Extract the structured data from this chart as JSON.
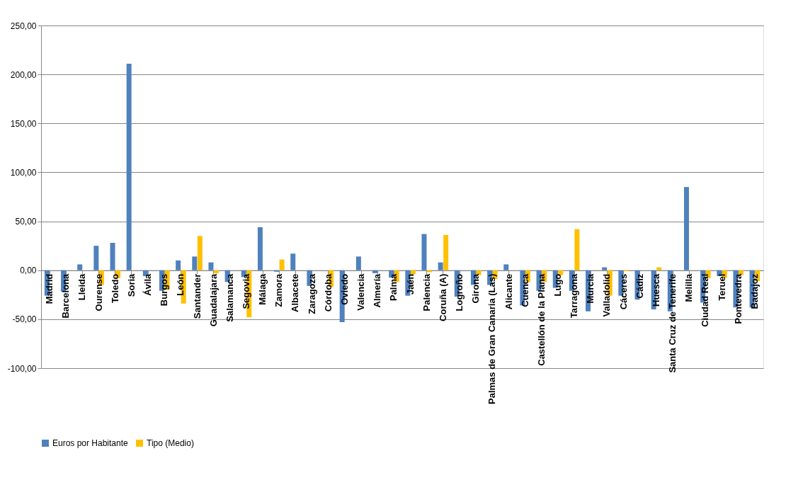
{
  "chart_data": {
    "type": "bar",
    "categories": [
      "Madrid",
      "Barcelona",
      "Lleida",
      "Ourense",
      "Toledo",
      "Soria",
      "Ávila",
      "Burgos",
      "León",
      "Santander",
      "Guadalajara",
      "Salamanca",
      "Segovia",
      "Málaga",
      "Zamora",
      "Albacete",
      "Zaragoza",
      "Córdoba",
      "Oviedo",
      "Valencia",
      "Almería",
      "Palma",
      "Jaén",
      "Palencia",
      "Coruña (A)",
      "Logroño",
      "Girona",
      "Palmas de Gran Canaria (Las)",
      "Alicante",
      "Cuenca",
      "Castellón de la Plana",
      "Lugo",
      "Tarragona",
      "Murcia",
      "Valladolid",
      "Cáceres",
      "Cádiz",
      "Huesca",
      "Santa Cruz de Tenerife",
      "Melilla",
      "Ciudad Real",
      "Teruel",
      "Pontevedra",
      "Badajoz"
    ],
    "series": [
      {
        "name": "Euros por Habitante",
        "color": "#4f81bd",
        "values": [
          -26,
          -22,
          6,
          25,
          28,
          211,
          -6,
          -21,
          10,
          14,
          8,
          -12,
          -7,
          44,
          -1.5,
          17,
          -16,
          null,
          -53,
          14,
          -3,
          -7.5,
          -26,
          37,
          8,
          -27,
          -15,
          -15,
          6,
          -36,
          -21,
          -18,
          -21,
          -42,
          3,
          -26,
          -30,
          -40,
          -42,
          85,
          -33,
          -6,
          -38,
          -38
        ]
      },
      {
        "name": "Tipo (Medio)",
        "color": "#ffc000",
        "values": [
          null,
          null,
          null,
          -15,
          -8,
          null,
          null,
          -20,
          -34,
          35,
          -3,
          null,
          -48,
          null,
          11,
          null,
          null,
          -17,
          null,
          null,
          null,
          -12,
          -4,
          -2,
          36,
          null,
          -5,
          -9,
          null,
          -12,
          -12,
          -5,
          42,
          null,
          -26,
          -1,
          null,
          3,
          null,
          null,
          -8,
          -8,
          -5,
          -11
        ]
      }
    ],
    "ylim": [
      -100,
      250
    ],
    "yticks": [
      {
        "value": -100,
        "label": "-100,00"
      },
      {
        "value": -50,
        "label": "-50,00"
      },
      {
        "value": 0,
        "label": "0,00"
      },
      {
        "value": 50,
        "label": "50,00"
      },
      {
        "value": 100,
        "label": "100,00"
      },
      {
        "value": 150,
        "label": "150,00"
      },
      {
        "value": 200,
        "label": "200,00"
      },
      {
        "value": 250,
        "label": "250,00"
      }
    ],
    "grid": "y",
    "legend": "bottom"
  }
}
